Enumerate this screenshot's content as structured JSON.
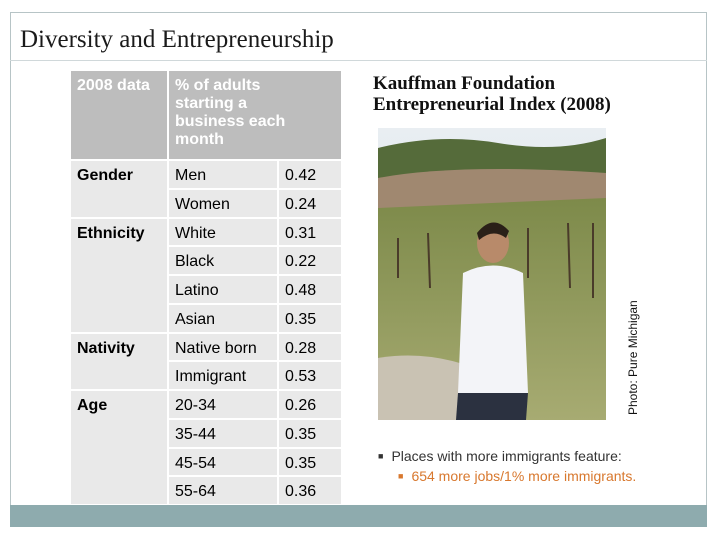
{
  "header": {
    "title": "Diversity and Entrepreneurship"
  },
  "table": {
    "header": [
      "2008 data",
      "% of adults starting a business each month"
    ],
    "groups": [
      {
        "label": "Gender",
        "rows": [
          {
            "name": "Men",
            "value": 0.42
          },
          {
            "name": "Women",
            "value": 0.24
          }
        ]
      },
      {
        "label": "Ethnicity",
        "rows": [
          {
            "name": "White",
            "value": 0.31
          },
          {
            "name": "Black",
            "value": 0.22
          },
          {
            "name": "Latino",
            "value": 0.48
          },
          {
            "name": "Asian",
            "value": 0.35
          }
        ]
      },
      {
        "label": "Nativity",
        "rows": [
          {
            "name": "Native born",
            "value": 0.28
          },
          {
            "name": "Immigrant",
            "value": 0.53
          }
        ]
      },
      {
        "label": "Age",
        "rows": [
          {
            "name": "20-34",
            "value": 0.26
          },
          {
            "name": "35-44",
            "value": 0.35
          },
          {
            "name": "45-54",
            "value": 0.35
          },
          {
            "name": "55-64",
            "value": 0.36
          }
        ]
      }
    ]
  },
  "sidebar": {
    "heading_lines": [
      "Kauffman Foundation",
      "Entrepreneurial Index (2008)"
    ],
    "photo_credit": "Photo:  Pure Michigan",
    "bullet": "Places with more immigrants feature:",
    "sub_bullet": "654 more jobs/1% more immigrants."
  }
}
